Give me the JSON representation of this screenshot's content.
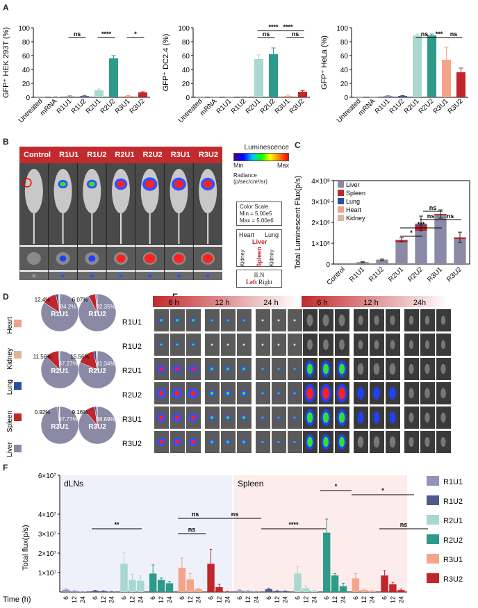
{
  "panels": {
    "A": "A",
    "B": "B",
    "C": "C",
    "D": "D",
    "E": "E",
    "F": "F"
  },
  "chart_data": [
    {
      "type": "bar",
      "ylabel": "GFP⁺ HEK 293T (%)",
      "ylim": [
        0,
        100
      ],
      "yticks": [
        "0",
        "20",
        "40",
        "60",
        "80",
        "100"
      ],
      "categories": [
        "Untreated",
        "mRNA",
        "R1U1",
        "R1U2",
        "R2U1",
        "R2U2",
        "R3U1",
        "R3U2"
      ],
      "values": [
        0.3,
        0.5,
        1.5,
        1.8,
        10,
        56,
        2,
        7
      ],
      "errors": [
        0.2,
        0.3,
        0.8,
        1,
        2,
        4,
        0.5,
        1
      ],
      "colors": [
        "#999",
        "#999",
        "#9094b8",
        "#4e5a8c",
        "#a8d8cf",
        "#2e9a8a",
        "#f4a48a",
        "#c0262c"
      ],
      "annotations": [
        {
          "from": 2,
          "to": 3,
          "text": "ns"
        },
        {
          "from": 4,
          "to": 5,
          "text": "****"
        },
        {
          "from": 6,
          "to": 7,
          "text": "*"
        }
      ]
    },
    {
      "type": "bar",
      "ylabel": "GFP⁺ DC2.4 (%)",
      "ylim": [
        0,
        100
      ],
      "yticks": [
        "0",
        "20",
        "40",
        "60",
        "80",
        "100"
      ],
      "categories": [
        "Untreated",
        "mRNA",
        "R1U1",
        "R1U2",
        "R2U1",
        "R2U2",
        "R3U1",
        "R3U2"
      ],
      "values": [
        0.3,
        0.3,
        0.3,
        0.3,
        55,
        62,
        2,
        8
      ],
      "errors": [
        0.1,
        0.1,
        0.1,
        0.1,
        6,
        9,
        1,
        1.5
      ],
      "colors": [
        "#999",
        "#999",
        "#9094b8",
        "#4e5a8c",
        "#a8d8cf",
        "#2e9a8a",
        "#f4a48a",
        "#c0262c"
      ],
      "annotations": [
        {
          "from": 4,
          "to": 5,
          "text": "ns"
        },
        {
          "from": 4,
          "to": 6,
          "text": "****",
          "level": 1
        },
        {
          "from": 5,
          "to": 7,
          "text": "****",
          "level": 1
        },
        {
          "from": 6,
          "to": 7,
          "text": "ns"
        }
      ]
    },
    {
      "type": "bar",
      "ylabel": "GFP⁺ HeLa (%)",
      "ylim": [
        0,
        100
      ],
      "yticks": [
        "0",
        "20",
        "40",
        "60",
        "80",
        "100"
      ],
      "categories": [
        "Untreated",
        "mRNA",
        "R1U1",
        "R1U2",
        "R2U1",
        "R2U2",
        "R3U1",
        "R3U2"
      ],
      "values": [
        0.3,
        0.3,
        2,
        2,
        89,
        89,
        54,
        36
      ],
      "errors": [
        0.1,
        0.1,
        0.5,
        0.5,
        2,
        2,
        18,
        6
      ],
      "colors": [
        "#999",
        "#999",
        "#9094b8",
        "#4e5a8c",
        "#a8d8cf",
        "#2e9a8a",
        "#f4a48a",
        "#c0262c"
      ],
      "annotations": [
        {
          "from": 4,
          "to": 5,
          "text": "ns"
        },
        {
          "from": 5,
          "to": 6,
          "text": "***"
        },
        {
          "from": 6,
          "to": 7,
          "text": "ns"
        }
      ]
    },
    {
      "type": "bar",
      "ylabel": "Total Luminescent Flux(p/s)",
      "ylim": [
        0,
        4
      ],
      "yticks": [
        "0",
        "1×10⁸",
        "2×10⁸",
        "3×10⁸",
        "4×10⁸"
      ],
      "categories": [
        "Control",
        "R1U1",
        "R1U2",
        "R2U1",
        "R2U2",
        "R3U1",
        "R3U2"
      ],
      "series": [
        {
          "name": "Liver",
          "color": "#8a8aa6",
          "values": [
            0,
            0.08,
            0.2,
            1.05,
            1.6,
            2.35,
            1.2
          ]
        },
        {
          "name": "Spleen",
          "color": "#c0262c",
          "values": [
            0,
            0.01,
            0.01,
            0.1,
            0.25,
            0.05,
            0.08
          ]
        },
        {
          "name": "Lung",
          "color": "#2a4fa0",
          "values": [
            0,
            0,
            0,
            0,
            0.05,
            0,
            0
          ]
        },
        {
          "name": "Heart",
          "color": "#f0a090",
          "values": [
            0,
            0,
            0,
            0.02,
            0.05,
            0,
            0
          ]
        },
        {
          "name": "Kidney",
          "color": "#d9b89a",
          "values": [
            0,
            0,
            0,
            0,
            0,
            0,
            0
          ]
        }
      ],
      "errors": [
        0,
        0.02,
        0.03,
        0.1,
        0.35,
        0.2,
        0.25
      ],
      "annotations": [
        {
          "from": 3,
          "to": 4,
          "text": "*"
        },
        {
          "from": 3,
          "to": 5,
          "text": "***"
        },
        {
          "from": 4,
          "to": 5,
          "text": "ns"
        },
        {
          "from": 4,
          "to": 5,
          "text": "ns",
          "level": 1
        },
        {
          "from": 5,
          "to": 6,
          "text": "ns"
        }
      ]
    },
    {
      "type": "pie",
      "pies": [
        {
          "name": "R1U1",
          "labels": [
            "12.4%",
            "84.2%"
          ],
          "values": [
            84.2,
            12.4,
            2,
            1,
            0.4
          ]
        },
        {
          "name": "R1U2",
          "labels": [
            "6.07%",
            "92.35%"
          ],
          "values": [
            92.35,
            6.07,
            1,
            0.4,
            0.18
          ]
        },
        {
          "name": "R2U1",
          "labels": [
            "11.56%",
            "87.27%"
          ],
          "values": [
            87.27,
            11.56,
            0.8,
            0.2,
            0.17
          ]
        },
        {
          "name": "R2U2",
          "labels": [
            "15.56%",
            "81.34%"
          ],
          "values": [
            81.34,
            15.56,
            2,
            0.8,
            0.3
          ]
        },
        {
          "name": "R3U1",
          "labels": [
            "0.92%",
            "97.77%"
          ],
          "values": [
            97.77,
            0.92,
            0.8,
            0.3,
            0.21
          ]
        },
        {
          "name": "R3U2",
          "labels": [
            "9.16%",
            "88.69%"
          ],
          "values": [
            88.69,
            9.16,
            1.5,
            0.4,
            0.25
          ]
        }
      ],
      "legend": [
        "Heart",
        "Kidney",
        "Lung",
        "Spleen",
        "Liver"
      ],
      "legend_colors": [
        "#f0a090",
        "#d9b89a",
        "#2a4fa0",
        "#c0262c",
        "#8a8aa6"
      ]
    },
    {
      "type": "bar",
      "ylabel": "Total flux(p/s)",
      "xlabel": "Time (h)",
      "ylim": [
        0,
        6
      ],
      "yticks": [
        "1×10⁷",
        "2×10⁷",
        "3×10⁷",
        "4×10⁷",
        "6×10⁷"
      ],
      "group_labels": [
        "dLNs",
        "Spleen"
      ],
      "time_labels": [
        "6",
        "12",
        "24"
      ],
      "series": [
        {
          "name": "R1U1",
          "color": "#9094b8",
          "dlns": [
            0.12,
            0.05,
            0.02
          ],
          "spleen": [
            0.08,
            0.05,
            0.03
          ]
        },
        {
          "name": "R1U2",
          "color": "#4e5a8c",
          "dlns": [
            0.06,
            0.04,
            0.02
          ],
          "spleen": [
            0.15,
            0.05,
            0.04
          ]
        },
        {
          "name": "R2U1",
          "color": "#a8d8cf",
          "dlns": [
            1.45,
            0.62,
            0.58
          ],
          "spleen": [
            0.95,
            0.2,
            0.05
          ]
        },
        {
          "name": "R2U2",
          "color": "#2e9a8a",
          "dlns": [
            0.95,
            0.62,
            0.45
          ],
          "spleen": [
            3.05,
            0.85,
            0.3
          ]
        },
        {
          "name": "R3U1",
          "color": "#f4a48a",
          "dlns": [
            1.25,
            0.65,
            0.15
          ],
          "spleen": [
            0.7,
            0.1,
            0.05
          ]
        },
        {
          "name": "R3U2",
          "color": "#c0262c",
          "dlns": [
            1.45,
            0.25,
            0.02
          ],
          "spleen": [
            0.85,
            0.4,
            0.1
          ]
        }
      ],
      "errors_dlns": [
        [
          0.05,
          0.02,
          0.01
        ],
        [
          0.03,
          0.02,
          0.01
        ],
        [
          0.6,
          0.3,
          0.25
        ],
        [
          0.45,
          0.1,
          0.1
        ],
        [
          0.5,
          0.3,
          0.05
        ],
        [
          0.75,
          0.15,
          0.01
        ]
      ],
      "errors_spleen": [
        [
          0.03,
          0.02,
          0.01
        ],
        [
          0.05,
          0.02,
          0.02
        ],
        [
          0.35,
          0.1,
          0.03
        ],
        [
          0.7,
          0.1,
          0.15
        ],
        [
          0.25,
          0.05,
          0.02
        ],
        [
          0.25,
          0.1,
          0.05
        ]
      ],
      "annotations": [
        {
          "side": "dlns",
          "text": "**"
        },
        {
          "side": "dlns",
          "text": "ns"
        },
        {
          "side": "dlns",
          "text": "ns"
        },
        {
          "side": "dlns",
          "text": "ns"
        },
        {
          "side": "spleen",
          "text": "****"
        },
        {
          "side": "spleen",
          "text": "*"
        },
        {
          "side": "spleen",
          "text": "*"
        },
        {
          "side": "spleen",
          "text": "ns"
        }
      ]
    }
  ],
  "panelB": {
    "columns": [
      "Control",
      "R1U1",
      "R1U2",
      "R2U1",
      "R2U2",
      "R3U1",
      "R3U2"
    ],
    "luminescence_title": "Luminescence",
    "scale_min": "Min",
    "scale_max": "Max",
    "radiance_line1": "Radiance",
    "radiance_line2": "(p/sec/cm²/sr)",
    "color_scale_title": "Color Scale",
    "color_scale_min": "Min = 5.00e5",
    "color_scale_max": "Max = 5.00e6",
    "organ_heart": "Heart",
    "organ_lung": "Lung",
    "organ_liver": "Liver",
    "organ_spleen": "Spleen",
    "organ_kidney_left": "Kidney",
    "organ_kidney_right": "Kidney",
    "iln_title": "ILN",
    "iln_left": "Left",
    "iln_right": "Right"
  },
  "panelE": {
    "rows": [
      "R1U1",
      "R1U2",
      "R2U1",
      "R2U2",
      "R3U1",
      "R3U2"
    ],
    "times": [
      "6 h",
      "12 h",
      "24 h"
    ],
    "times_right": [
      "6 h",
      "12 h",
      "24h"
    ]
  }
}
